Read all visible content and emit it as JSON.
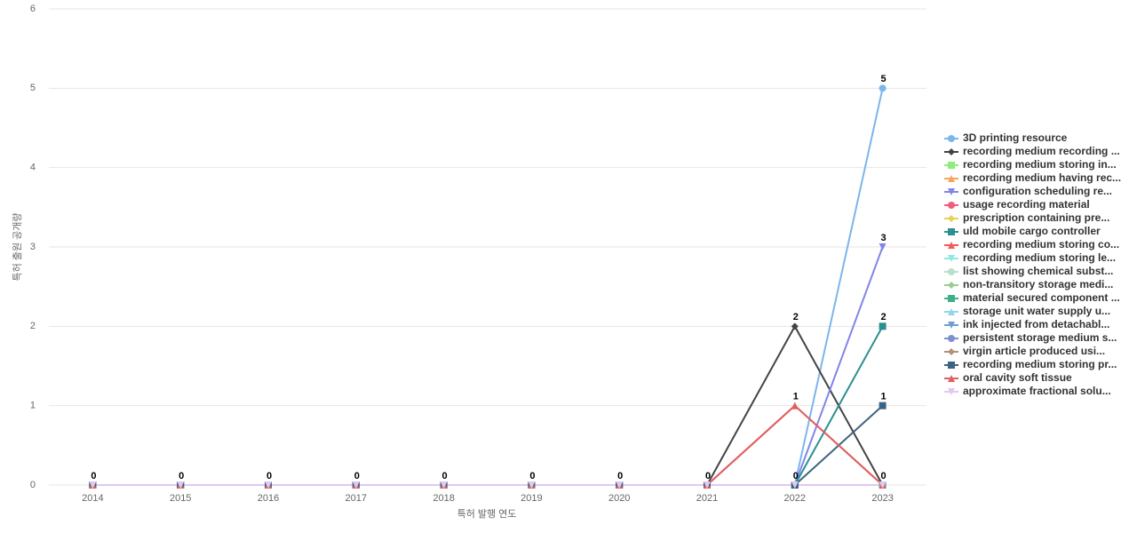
{
  "chart_data": {
    "type": "line",
    "x_label": "특허 발행 연도",
    "y_label": "특허 출원 공개량",
    "categories": [
      "2014",
      "2015",
      "2016",
      "2017",
      "2018",
      "2019",
      "2020",
      "2021",
      "2022",
      "2023"
    ],
    "ylim": [
      0,
      6
    ],
    "yticks": [
      0,
      1,
      2,
      3,
      4,
      5,
      6
    ],
    "grid": true,
    "legend": "right",
    "series": [
      {
        "name": "3D printing resource",
        "color": "#7cb5ec",
        "marker": "circle",
        "values": [
          0,
          0,
          0,
          0,
          0,
          0,
          0,
          0,
          0,
          5
        ]
      },
      {
        "name": "recording medium recording ...",
        "color": "#434348",
        "marker": "diamond",
        "values": [
          0,
          0,
          0,
          0,
          0,
          0,
          0,
          0,
          2,
          0
        ]
      },
      {
        "name": "recording medium storing in...",
        "color": "#90ed7d",
        "marker": "square",
        "values": [
          0,
          0,
          0,
          0,
          0,
          0,
          0,
          0,
          0,
          0
        ]
      },
      {
        "name": "recording medium having rec...",
        "color": "#f7a35c",
        "marker": "triangle",
        "values": [
          0,
          0,
          0,
          0,
          0,
          0,
          0,
          0,
          0,
          0
        ]
      },
      {
        "name": "configuration scheduling re...",
        "color": "#8085e9",
        "marker": "triangle-down",
        "values": [
          0,
          0,
          0,
          0,
          0,
          0,
          0,
          0,
          0,
          3
        ]
      },
      {
        "name": "usage recording material",
        "color": "#f15c80",
        "marker": "circle",
        "values": [
          0,
          0,
          0,
          0,
          0,
          0,
          0,
          0,
          0,
          0
        ]
      },
      {
        "name": "prescription containing pre...",
        "color": "#e4d354",
        "marker": "diamond",
        "values": [
          0,
          0,
          0,
          0,
          0,
          0,
          0,
          0,
          0,
          0
        ]
      },
      {
        "name": "uld mobile cargo controller",
        "color": "#2b908f",
        "marker": "square",
        "values": [
          0,
          0,
          0,
          0,
          0,
          0,
          0,
          0,
          0,
          2
        ]
      },
      {
        "name": "recording medium storing co...",
        "color": "#f45b5b",
        "marker": "triangle",
        "values": [
          0,
          0,
          0,
          0,
          0,
          0,
          0,
          0,
          1,
          0
        ]
      },
      {
        "name": "recording medium storing le...",
        "color": "#91e8e1",
        "marker": "triangle-down",
        "values": [
          0,
          0,
          0,
          0,
          0,
          0,
          0,
          0,
          0,
          0
        ]
      },
      {
        "name": "list showing chemical subst...",
        "color": "#b8e0cc",
        "marker": "circle",
        "values": [
          0,
          0,
          0,
          0,
          0,
          0,
          0,
          0,
          0,
          0
        ]
      },
      {
        "name": "non-transitory storage medi...",
        "color": "#9ccc8c",
        "marker": "diamond",
        "values": [
          0,
          0,
          0,
          0,
          0,
          0,
          0,
          0,
          0,
          0
        ]
      },
      {
        "name": "material secured component ...",
        "color": "#3fae8c",
        "marker": "square",
        "values": [
          0,
          0,
          0,
          0,
          0,
          0,
          0,
          0,
          0,
          0
        ]
      },
      {
        "name": "storage unit water supply u...",
        "color": "#8fd6e8",
        "marker": "triangle",
        "values": [
          0,
          0,
          0,
          0,
          0,
          0,
          0,
          0,
          0,
          0
        ]
      },
      {
        "name": "ink injected from detachabl...",
        "color": "#6f9fcf",
        "marker": "triangle-down",
        "values": [
          0,
          0,
          0,
          0,
          0,
          0,
          0,
          0,
          0,
          0
        ]
      },
      {
        "name": "persistent storage medium s...",
        "color": "#7f8fd0",
        "marker": "circle",
        "values": [
          0,
          0,
          0,
          0,
          0,
          0,
          0,
          0,
          0,
          0
        ]
      },
      {
        "name": "virgin article produced usi...",
        "color": "#b0907a",
        "marker": "diamond",
        "values": [
          0,
          0,
          0,
          0,
          0,
          0,
          0,
          0,
          0,
          0
        ]
      },
      {
        "name": "recording medium storing pr...",
        "color": "#3c6482",
        "marker": "square",
        "values": [
          0,
          0,
          0,
          0,
          0,
          0,
          0,
          0,
          0,
          1
        ]
      },
      {
        "name": "oral cavity soft tissue",
        "color": "#e06060",
        "marker": "triangle",
        "values": [
          0,
          0,
          0,
          0,
          0,
          0,
          0,
          0,
          1,
          0
        ]
      },
      {
        "name": "approximate fractional solu...",
        "color": "#e0c8f0",
        "marker": "triangle-down",
        "values": [
          0,
          0,
          0,
          0,
          0,
          0,
          0,
          0,
          0,
          0
        ]
      }
    ]
  }
}
